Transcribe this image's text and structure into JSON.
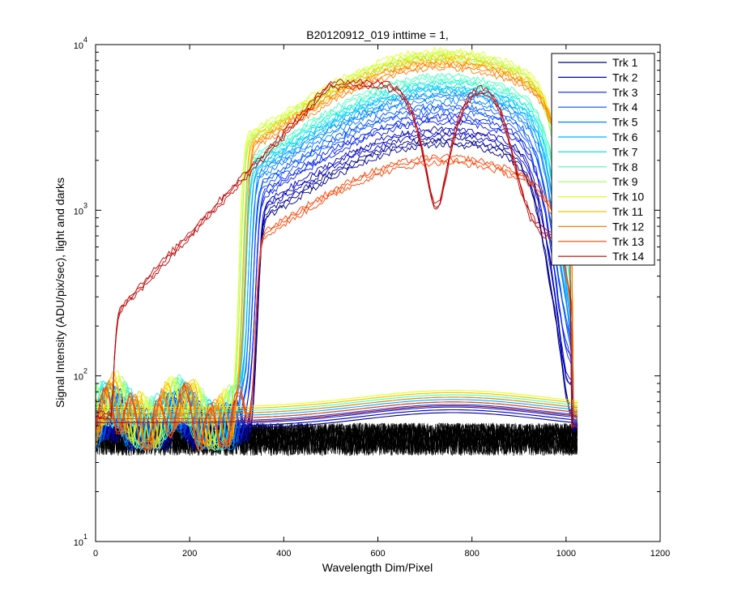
{
  "chart_data": {
    "type": "line",
    "title": "B20120912_019 inttime = 1,",
    "xlabel": "Wavelength Dim/Pixel",
    "ylabel": "Signal Intensity (ADU/pix/sec), light and darks",
    "xlim": [
      0,
      1200
    ],
    "ylim_exp": [
      1,
      4
    ],
    "yscale": "log",
    "x_ticks": [
      "0",
      "200",
      "400",
      "600",
      "800",
      "1000",
      "1200"
    ],
    "y_tick_base": "10",
    "y_tick_exps": [
      "1",
      "2",
      "3",
      "4"
    ],
    "grid": false,
    "legend_position": "top-right",
    "series": [
      {
        "name": "Trk 1",
        "color": "#00008f",
        "lo": 50,
        "hi": 2700,
        "rise": 350
      },
      {
        "name": "Trk 2",
        "color": "#0000bf",
        "lo": 52,
        "hi": 3100,
        "rise": 350
      },
      {
        "name": "Trk 3",
        "color": "#0020ef",
        "lo": 54,
        "hi": 3700,
        "rise": 345
      },
      {
        "name": "Trk 4",
        "color": "#0050ff",
        "lo": 56,
        "hi": 4300,
        "rise": 340
      },
      {
        "name": "Trk 5",
        "color": "#0080ff",
        "lo": 58,
        "hi": 5000,
        "rise": 335
      },
      {
        "name": "Trk 6",
        "color": "#00b0ff",
        "lo": 60,
        "hi": 5500,
        "rise": 330
      },
      {
        "name": "Trk 7",
        "color": "#10e0ef",
        "lo": 62,
        "hi": 5900,
        "rise": 325
      },
      {
        "name": "Trk 8",
        "color": "#40ffbf",
        "lo": 64,
        "hi": 6500,
        "rise": 320
      },
      {
        "name": "Trk 9",
        "color": "#9fff60",
        "lo": 66,
        "hi": 8800,
        "rise": 315
      },
      {
        "name": "Trk 10",
        "color": "#dfff20",
        "lo": 68,
        "hi": 9300,
        "rise": 312
      },
      {
        "name": "Trk 11",
        "color": "#ffbf00",
        "lo": 66,
        "hi": 8400,
        "rise": 320
      },
      {
        "name": "Trk 12",
        "color": "#ff8000",
        "lo": 62,
        "hi": 7800,
        "rise": 325
      },
      {
        "name": "Trk 13",
        "color": "#ff4000",
        "lo": 58,
        "hi": 2100,
        "rise": 345
      },
      {
        "name": "Trk 14",
        "color": "#bf0000",
        "lo": 55,
        "hi": 6000,
        "rise": 20
      }
    ],
    "dark_band": {
      "color": "#000000",
      "min": 33,
      "max": 52
    }
  }
}
